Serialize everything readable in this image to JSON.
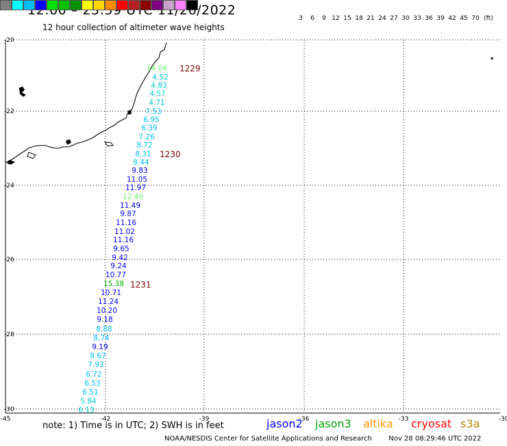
{
  "header": {
    "title": "12:00 – 23:59 UTC 11/26/2022",
    "subtitle": "12 hour collection of altimeter wave heights"
  },
  "color_scale": {
    "swatches": [
      "#808080",
      "#00ffff",
      "#00bfff",
      "#0000ff",
      "#00e000",
      "#00c000",
      "#009000",
      "#ffff00",
      "#ffd700",
      "#ff8c00",
      "#ff0000",
      "#b22222",
      "#8b0000",
      "#800080",
      "#c8a2c8",
      "#ff80ff",
      "#000000"
    ],
    "labels": [
      "3",
      "6",
      "9",
      "12",
      "15",
      "18",
      "21",
      "24",
      "27",
      "30",
      "33",
      "36",
      "39",
      "42",
      "45",
      "70",
      "(ft)"
    ]
  },
  "axes": {
    "lat_ticks": [
      "-20",
      "-22",
      "-24",
      "-26",
      "-28",
      "-30"
    ],
    "lon_ticks": [
      "-45",
      "-42",
      "-39",
      "-36",
      "-33",
      "-30"
    ]
  },
  "passes": [
    {
      "label": "1229",
      "color": "#800000"
    },
    {
      "label": "1230",
      "color": "#800000"
    },
    {
      "label": "1231",
      "color": "#800000"
    }
  ],
  "wave_heights": [
    {
      "v": "14.04",
      "c": "#66ff66"
    },
    {
      "v": "4.52",
      "c": "#00cccc"
    },
    {
      "v": "4.83",
      "c": "#00cccc"
    },
    {
      "v": "4.57",
      "c": "#00cccc"
    },
    {
      "v": "4.71",
      "c": "#00cccc"
    },
    {
      "v": "7.53",
      "c": "#00bfff"
    },
    {
      "v": "6.95",
      "c": "#00bfff"
    },
    {
      "v": "6.39",
      "c": "#00bfff"
    },
    {
      "v": "7.26",
      "c": "#00bfff"
    },
    {
      "v": "8.72",
      "c": "#00bfff"
    },
    {
      "v": "8.31",
      "c": "#00bfff"
    },
    {
      "v": "8.44",
      "c": "#00bfff"
    },
    {
      "v": "9.83",
      "c": "#0000ff"
    },
    {
      "v": "11.05",
      "c": "#0000ff"
    },
    {
      "v": "11.97",
      "c": "#0000ff"
    },
    {
      "v": "12.40",
      "c": "#66ff66"
    },
    {
      "v": "11.49",
      "c": "#0000ff"
    },
    {
      "v": "9.87",
      "c": "#0000ff"
    },
    {
      "v": "11.16",
      "c": "#0000ff"
    },
    {
      "v": "11.02",
      "c": "#0000ff"
    },
    {
      "v": "11.16",
      "c": "#0000ff"
    },
    {
      "v": "9.65",
      "c": "#0000ff"
    },
    {
      "v": "9.42",
      "c": "#0000ff"
    },
    {
      "v": "9.24",
      "c": "#0000ff"
    },
    {
      "v": "10.77",
      "c": "#0000ff"
    },
    {
      "v": "15.38",
      "c": "#00b000"
    },
    {
      "v": "10.71",
      "c": "#0000ff"
    },
    {
      "v": "11.24",
      "c": "#0000ff"
    },
    {
      "v": "10.20",
      "c": "#0000ff"
    },
    {
      "v": "9.18",
      "c": "#0000ff"
    },
    {
      "v": "8.88",
      "c": "#00bfff"
    },
    {
      "v": "8.74",
      "c": "#00bfff"
    },
    {
      "v": "9.19",
      "c": "#0000ff"
    },
    {
      "v": "8.67",
      "c": "#00bfff"
    },
    {
      "v": "7.93",
      "c": "#00bfff"
    },
    {
      "v": "6.72",
      "c": "#00bfff"
    },
    {
      "v": "6.53",
      "c": "#00bfff"
    },
    {
      "v": "6.51",
      "c": "#00bfff"
    },
    {
      "v": "5.84",
      "c": "#00cccc"
    },
    {
      "v": "6.13",
      "c": "#00cccc"
    }
  ],
  "footer": {
    "note": "note: 1) Time is in UTC; 2) SWH is in feet",
    "satellites": [
      {
        "name": "jason2",
        "color": "#0000ff"
      },
      {
        "name": "jason3",
        "color": "#00a000"
      },
      {
        "name": "altika",
        "color": "#ff9900"
      },
      {
        "name": "cryosat",
        "color": "#ff0000"
      },
      {
        "name": "s3a",
        "color": "#b8860b"
      }
    ],
    "credit": "NOAA/NESDIS Center for Satellite Applications and Research",
    "timestamp": "Nov 28 08:29:46 UTC 2022"
  }
}
